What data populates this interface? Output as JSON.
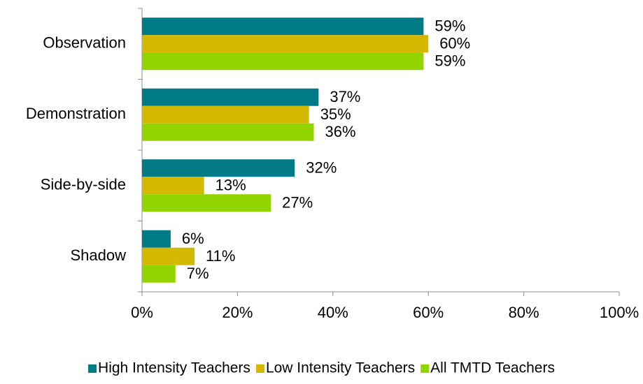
{
  "chart_data": {
    "type": "bar",
    "orientation": "horizontal",
    "categories": [
      "Observation",
      "Demonstration",
      "Side-by-side",
      "Shadow"
    ],
    "series": [
      {
        "name": "High Intensity Teachers",
        "color": "#007a87",
        "values": [
          59,
          37,
          32,
          6
        ],
        "value_labels": [
          "59%",
          "37%",
          "32%",
          "6%"
        ]
      },
      {
        "name": "Low Intensity Teachers",
        "color": "#d4b800",
        "values": [
          60,
          35,
          13,
          11
        ],
        "value_labels": [
          "60%",
          "35%",
          "13%",
          "11%"
        ]
      },
      {
        "name": "All TMTD Teachers",
        "color": "#92d400",
        "values": [
          59,
          36,
          27,
          7
        ],
        "value_labels": [
          "59%",
          "36%",
          "27%",
          "7%"
        ]
      }
    ],
    "xlim": [
      0,
      100
    ],
    "xticks": [
      {
        "value": 0,
        "label": "0%"
      },
      {
        "value": 20,
        "label": "20%"
      },
      {
        "value": 40,
        "label": "40%"
      },
      {
        "value": 60,
        "label": "60%"
      },
      {
        "value": 80,
        "label": "80%"
      },
      {
        "value": 100,
        "label": "100%"
      }
    ],
    "legend": "bottom"
  }
}
